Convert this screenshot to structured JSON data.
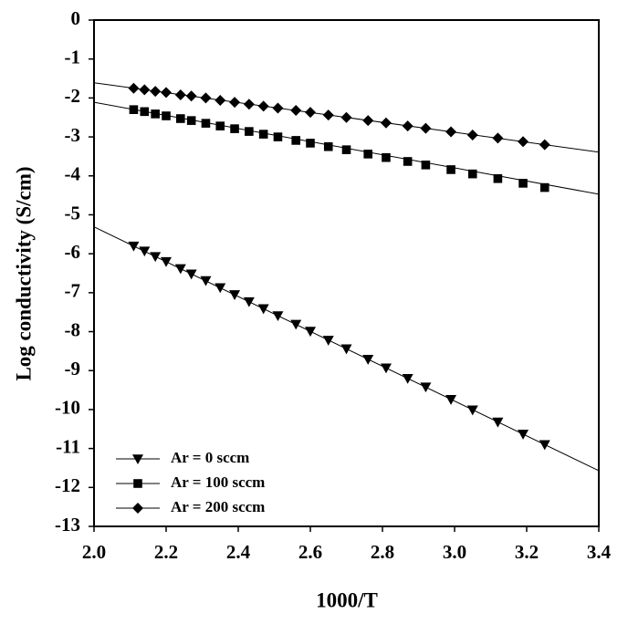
{
  "chart_data": {
    "type": "scatter",
    "x_label": "1000/T",
    "y_label": "Log conductivity (S/cm)",
    "xlim": [
      2.0,
      3.4
    ],
    "ylim": [
      -13,
      0
    ],
    "xticks": [
      {
        "value": 2,
        "label": "2.0"
      },
      2.2,
      2.4,
      2.6,
      2.8,
      {
        "value": 3,
        "label": "3.0"
      },
      3.2,
      3.4
    ],
    "yticks": [
      0,
      -1,
      -2,
      -3,
      -4,
      -5,
      -6,
      -7,
      -8,
      -9,
      -10,
      -11,
      -12,
      -13
    ],
    "grid": false,
    "legend": "lower left",
    "x": [
      2.11,
      2.14,
      2.17,
      2.2,
      2.24,
      2.27,
      2.31,
      2.35,
      2.39,
      2.43,
      2.47,
      2.51,
      2.56,
      2.6,
      2.65,
      2.7,
      2.76,
      2.81,
      2.87,
      2.92,
      2.99,
      3.05,
      3.12,
      3.19,
      3.25
    ],
    "series": [
      {
        "name": "Ar = 0 sccm",
        "color": "#000000",
        "marker": "triangle-down",
        "values": [
          -5.8,
          -5.93,
          -6.07,
          -6.2,
          -6.38,
          -6.52,
          -6.69,
          -6.87,
          -7.05,
          -7.23,
          -7.41,
          -7.59,
          -7.81,
          -7.99,
          -8.22,
          -8.44,
          -8.71,
          -8.93,
          -9.2,
          -9.42,
          -9.74,
          -10.01,
          -10.32,
          -10.63,
          -10.9
        ],
        "trendline": {
          "x": [
            2.0,
            3.4
          ],
          "values": [
            -5.31,
            -11.57
          ]
        }
      },
      {
        "name": "Ar = 100 sccm",
        "color": "#000000",
        "marker": "square",
        "values": [
          -2.3,
          -2.35,
          -2.41,
          -2.46,
          -2.53,
          -2.58,
          -2.65,
          -2.72,
          -2.79,
          -2.86,
          -2.93,
          -3.0,
          -3.09,
          -3.16,
          -3.25,
          -3.33,
          -3.44,
          -3.53,
          -3.63,
          -3.72,
          -3.84,
          -3.95,
          -4.07,
          -4.19,
          -4.3
        ],
        "trendline": {
          "x": [
            2.0,
            3.4
          ],
          "values": [
            -2.11,
            -4.47
          ]
        }
      },
      {
        "name": "Ar = 200 sccm",
        "color": "#000000",
        "marker": "diamond",
        "values": [
          -1.75,
          -1.79,
          -1.83,
          -1.86,
          -1.92,
          -1.95,
          -2.0,
          -2.06,
          -2.11,
          -2.16,
          -2.21,
          -2.26,
          -2.32,
          -2.37,
          -2.44,
          -2.5,
          -2.58,
          -2.64,
          -2.72,
          -2.78,
          -2.87,
          -2.95,
          -3.03,
          -3.12,
          -3.2
        ],
        "trendline": {
          "x": [
            2.0,
            3.4
          ],
          "values": [
            -1.61,
            -3.39
          ]
        }
      }
    ]
  }
}
